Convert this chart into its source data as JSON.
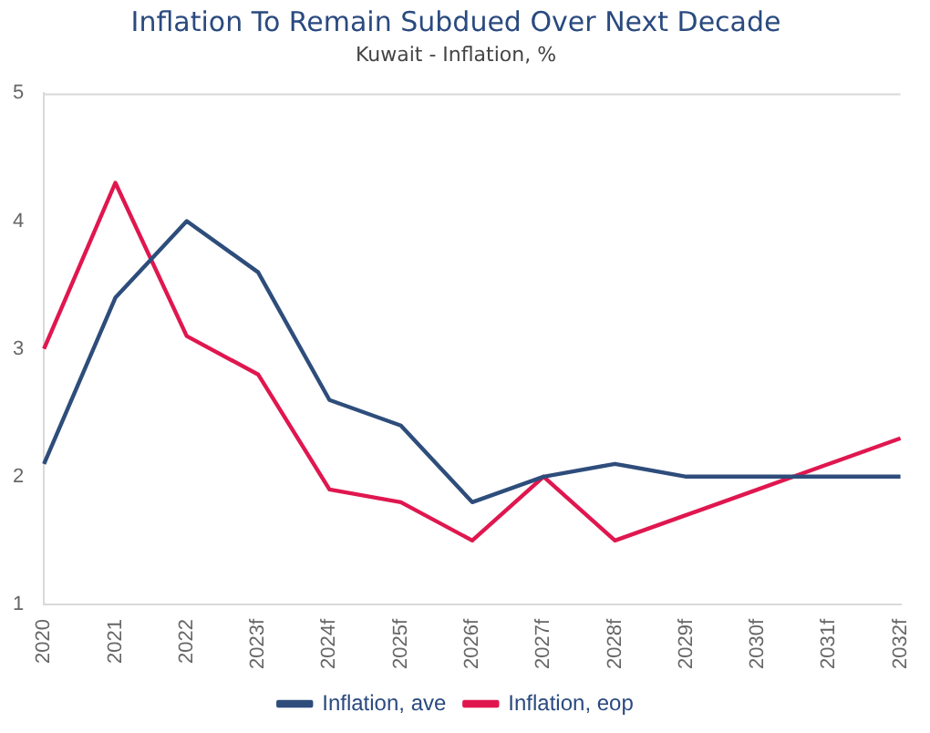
{
  "chart_data": {
    "type": "line",
    "title": "Inflation To Remain Subdued Over Next Decade",
    "subtitle": "Kuwait - Inflation, %",
    "categories": [
      "2020",
      "2021",
      "2022",
      "2023f",
      "2024f",
      "2025f",
      "2026f",
      "2027f",
      "2028f",
      "2029f",
      "2030f",
      "2031f",
      "2032f"
    ],
    "series": [
      {
        "name": "Inflation, ave",
        "color": "#2e4d7b",
        "values": [
          2.1,
          3.4,
          4.0,
          3.6,
          2.6,
          2.4,
          1.8,
          2.0,
          2.1,
          2.0,
          2.0,
          2.0,
          2.0
        ]
      },
      {
        "name": "Inflation, eop",
        "color": "#e0174f",
        "values": [
          3.0,
          4.3,
          3.1,
          2.8,
          1.9,
          1.8,
          1.5,
          2.0,
          1.5,
          1.7,
          1.9,
          2.1,
          2.3
        ]
      }
    ],
    "ylim": [
      1,
      5
    ],
    "yticks": [
      1,
      2,
      3,
      4,
      5
    ],
    "grid": false,
    "legend": "bottom",
    "marker": "none",
    "line_style": "solid"
  }
}
